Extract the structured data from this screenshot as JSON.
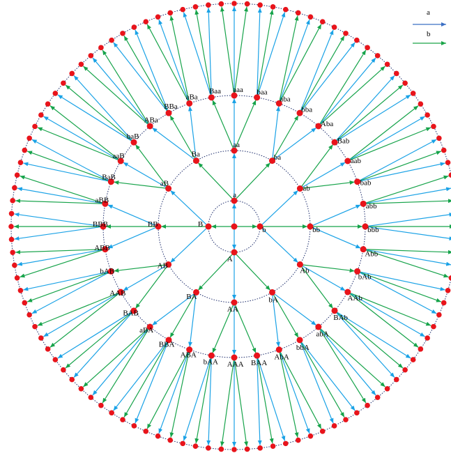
{
  "legend": {
    "a_label": "a",
    "b_label": "b",
    "a_color": "#3b6fc4",
    "b_color": "#1aa548"
  },
  "colors": {
    "node": "#e8141b",
    "circle": "#1a2a6a",
    "arrow_a": "#1aa2e6",
    "arrow_b": "#16a34a"
  },
  "center_label": "",
  "level1": [
    "a",
    "b",
    "A",
    "B"
  ],
  "level2": [
    "aa",
    "ba",
    "ab",
    "bb",
    "Ab",
    "bA",
    "AA",
    "BA",
    "AB",
    "BB",
    "aB",
    "Ba"
  ],
  "level3": [
    "aaa",
    "baa",
    "aba",
    "bba",
    "Aba",
    "Bab",
    "aab",
    "bab",
    "abb",
    "bbb",
    "Abb",
    "bAb",
    "AAb",
    "BAb",
    "abA",
    "bbA",
    "AbA",
    "BAA",
    "AAA",
    "bAA",
    "ABA",
    "BBA",
    "aBA",
    "BAB",
    "AAB",
    "bAB",
    "ABB",
    "BBB",
    "aBB",
    "BaB",
    "aaB",
    "baB",
    "ABa",
    "BBa",
    "aBa",
    "Baa"
  ],
  "level4_count": 108
}
